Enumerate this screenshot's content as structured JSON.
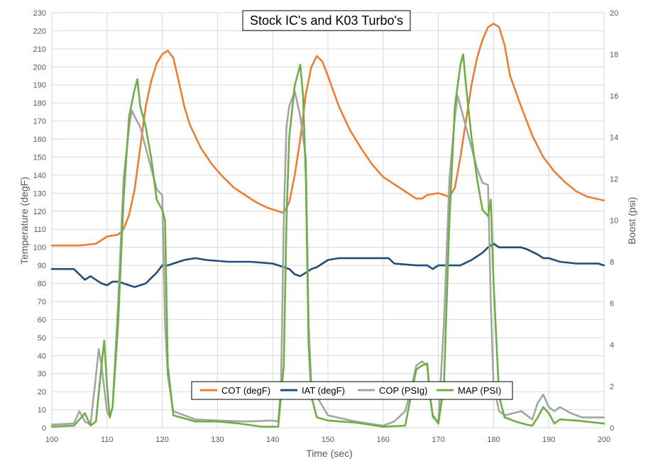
{
  "chart_data": {
    "type": "line",
    "title": "Stock IC's and K03 Turbo's",
    "xlabel": "Time (sec)",
    "ylabel_left": "Temperature (degF)",
    "ylabel_right": "Boost (psi)",
    "xlim": [
      100,
      200
    ],
    "ylim_left": [
      0,
      230
    ],
    "ylim_right": [
      0,
      20
    ],
    "x_ticks": [
      100,
      110,
      120,
      130,
      140,
      150,
      160,
      170,
      180,
      190,
      200
    ],
    "y_left_ticks": [
      0,
      10,
      20,
      30,
      40,
      50,
      60,
      70,
      80,
      90,
      100,
      110,
      120,
      130,
      140,
      150,
      160,
      170,
      180,
      190,
      200,
      210,
      220,
      230
    ],
    "y_right_ticks": [
      0,
      2,
      4,
      6,
      8,
      10,
      12,
      14,
      16,
      18,
      20
    ],
    "grid": "vertical and horizontal",
    "legend_position": "bottom-center",
    "series": [
      {
        "name": "COT (degF)",
        "axis": "left",
        "color": "#ED7D31",
        "points": [
          [
            100,
            101
          ],
          [
            105,
            101
          ],
          [
            108,
            102
          ],
          [
            110,
            106
          ],
          [
            112,
            107
          ],
          [
            113,
            110
          ],
          [
            114,
            118
          ],
          [
            115,
            132
          ],
          [
            116,
            155
          ],
          [
            117,
            178
          ],
          [
            118,
            192
          ],
          [
            119,
            202
          ],
          [
            120,
            207
          ],
          [
            121,
            209
          ],
          [
            122,
            205
          ],
          [
            123,
            192
          ],
          [
            124,
            178
          ],
          [
            125,
            168
          ],
          [
            127,
            155
          ],
          [
            129,
            146
          ],
          [
            131,
            139
          ],
          [
            133,
            133
          ],
          [
            135,
            129
          ],
          [
            137,
            125
          ],
          [
            139,
            122
          ],
          [
            141,
            120
          ],
          [
            142,
            119
          ],
          [
            143,
            125
          ],
          [
            144,
            140
          ],
          [
            145,
            160
          ],
          [
            146,
            185
          ],
          [
            147,
            200
          ],
          [
            148,
            206
          ],
          [
            149,
            203
          ],
          [
            150,
            195
          ],
          [
            152,
            178
          ],
          [
            154,
            165
          ],
          [
            156,
            155
          ],
          [
            158,
            146
          ],
          [
            160,
            139
          ],
          [
            162,
            135
          ],
          [
            164,
            131
          ],
          [
            166,
            127
          ],
          [
            167,
            127
          ],
          [
            168,
            129
          ],
          [
            170,
            130
          ],
          [
            171,
            129
          ],
          [
            172,
            128
          ],
          [
            173,
            133
          ],
          [
            174,
            150
          ],
          [
            175,
            170
          ],
          [
            176,
            190
          ],
          [
            177,
            205
          ],
          [
            178,
            215
          ],
          [
            179,
            222
          ],
          [
            180,
            224
          ],
          [
            181,
            222
          ],
          [
            182,
            212
          ],
          [
            183,
            195
          ],
          [
            185,
            178
          ],
          [
            187,
            162
          ],
          [
            189,
            150
          ],
          [
            191,
            142
          ],
          [
            193,
            136
          ],
          [
            195,
            131
          ],
          [
            197,
            128
          ],
          [
            200,
            126
          ]
        ]
      },
      {
        "name": "IAT (degF)",
        "axis": "left",
        "color": "#1F4E79",
        "points": [
          [
            100,
            88
          ],
          [
            104,
            88
          ],
          [
            105,
            85
          ],
          [
            106,
            82
          ],
          [
            107,
            84
          ],
          [
            108,
            82
          ],
          [
            109,
            80
          ],
          [
            110,
            79
          ],
          [
            111,
            81
          ],
          [
            112,
            81
          ],
          [
            113,
            80
          ],
          [
            114,
            79
          ],
          [
            115,
            78
          ],
          [
            116,
            79
          ],
          [
            117,
            80
          ],
          [
            118,
            83
          ],
          [
            119,
            86
          ],
          [
            120,
            90
          ],
          [
            121,
            90
          ],
          [
            122,
            91
          ],
          [
            124,
            93
          ],
          [
            126,
            94
          ],
          [
            128,
            93
          ],
          [
            132,
            92
          ],
          [
            136,
            92
          ],
          [
            140,
            91
          ],
          [
            142,
            89
          ],
          [
            143,
            88
          ],
          [
            144,
            85
          ],
          [
            145,
            84
          ],
          [
            146,
            86
          ],
          [
            147,
            88
          ],
          [
            148,
            89
          ],
          [
            150,
            93
          ],
          [
            152,
            94
          ],
          [
            158,
            94
          ],
          [
            161,
            94
          ],
          [
            162,
            91
          ],
          [
            166,
            90
          ],
          [
            168,
            90
          ],
          [
            169,
            88
          ],
          [
            170,
            90
          ],
          [
            172,
            90
          ],
          [
            174,
            90
          ],
          [
            176,
            93
          ],
          [
            178,
            97
          ],
          [
            179,
            100
          ],
          [
            180,
            102
          ],
          [
            181,
            100
          ],
          [
            183,
            100
          ],
          [
            185,
            100
          ],
          [
            186,
            99
          ],
          [
            188,
            96
          ],
          [
            189,
            94
          ],
          [
            190,
            94
          ],
          [
            192,
            92
          ],
          [
            195,
            91
          ],
          [
            199,
            91
          ],
          [
            200,
            90
          ]
        ]
      },
      {
        "name": "COP (PSIg)",
        "axis": "right",
        "color": "#A5A5A5",
        "points": [
          [
            100,
            0.15
          ],
          [
            104,
            0.2
          ],
          [
            105,
            0.8
          ],
          [
            106,
            0.3
          ],
          [
            107,
            0.15
          ],
          [
            108,
            2.5
          ],
          [
            108.5,
            3.8
          ],
          [
            109,
            3.0
          ],
          [
            110,
            0.8
          ],
          [
            110.5,
            0.5
          ],
          [
            111,
            1.0
          ],
          [
            112,
            6.0
          ],
          [
            113,
            12
          ],
          [
            114,
            14.5
          ],
          [
            114.5,
            15.3
          ],
          [
            115,
            15.0
          ],
          [
            116,
            14.5
          ],
          [
            117,
            13.5
          ],
          [
            118,
            12.5
          ],
          [
            119,
            11.5
          ],
          [
            120,
            11.2
          ],
          [
            120.5,
            5.0
          ],
          [
            121,
            2.5
          ],
          [
            122,
            0.8
          ],
          [
            124,
            0.6
          ],
          [
            126,
            0.4
          ],
          [
            130,
            0.35
          ],
          [
            135,
            0.3
          ],
          [
            140,
            0.35
          ],
          [
            141,
            0.3
          ],
          [
            141.5,
            2.0
          ],
          [
            142,
            10.0
          ],
          [
            142.5,
            14.5
          ],
          [
            143,
            15.5
          ],
          [
            144,
            16.2
          ],
          [
            145,
            15.0
          ],
          [
            146,
            13.0
          ],
          [
            146.5,
            5.0
          ],
          [
            147,
            2.0
          ],
          [
            148,
            1.5
          ],
          [
            150,
            0.6
          ],
          [
            155,
            0.3
          ],
          [
            160,
            0.1
          ],
          [
            162,
            0.3
          ],
          [
            164,
            0.8
          ],
          [
            165,
            1.8
          ],
          [
            166,
            3.0
          ],
          [
            167,
            3.2
          ],
          [
            168,
            3.0
          ],
          [
            168.5,
            1.5
          ],
          [
            169,
            0.5
          ],
          [
            170,
            0.3
          ],
          [
            171,
            5.0
          ],
          [
            172,
            12.0
          ],
          [
            173,
            15.0
          ],
          [
            173.5,
            16.0
          ],
          [
            174,
            15.5
          ],
          [
            175,
            14.5
          ],
          [
            176,
            13.5
          ],
          [
            177,
            12.5
          ],
          [
            178,
            11.8
          ],
          [
            179,
            11.7
          ],
          [
            179.5,
            6.0
          ],
          [
            180,
            2.0
          ],
          [
            181,
            0.8
          ],
          [
            182,
            0.6
          ],
          [
            185,
            0.8
          ],
          [
            187,
            0.4
          ],
          [
            188,
            1.2
          ],
          [
            189,
            1.6
          ],
          [
            190,
            1.0
          ],
          [
            191,
            0.8
          ],
          [
            192,
            1.0
          ],
          [
            194,
            0.7
          ],
          [
            196,
            0.5
          ],
          [
            200,
            0.5
          ]
        ]
      },
      {
        "name": "MAP (PSI)",
        "axis": "right",
        "color": "#70AD47",
        "points": [
          [
            100,
            0.05
          ],
          [
            104,
            0.1
          ],
          [
            106,
            0.7
          ],
          [
            107,
            0.1
          ],
          [
            108,
            0.3
          ],
          [
            109,
            3.0
          ],
          [
            109.5,
            4.2
          ],
          [
            110,
            2.0
          ],
          [
            110.5,
            0.5
          ],
          [
            111,
            1.0
          ],
          [
            112,
            5.0
          ],
          [
            113,
            11.0
          ],
          [
            114,
            15.0
          ],
          [
            115,
            16.3
          ],
          [
            115.5,
            16.8
          ],
          [
            116,
            15.5
          ],
          [
            117,
            14.5
          ],
          [
            118,
            13.0
          ],
          [
            119,
            11.0
          ],
          [
            120,
            10.5
          ],
          [
            120.5,
            10.0
          ],
          [
            121,
            3.0
          ],
          [
            122,
            0.6
          ],
          [
            124,
            0.45
          ],
          [
            126,
            0.3
          ],
          [
            130,
            0.3
          ],
          [
            134,
            0.2
          ],
          [
            138,
            0.05
          ],
          [
            140,
            0.05
          ],
          [
            141,
            0.05
          ],
          [
            142,
            3.0
          ],
          [
            142.5,
            10.0
          ],
          [
            143,
            14.0
          ],
          [
            144,
            16.5
          ],
          [
            145,
            17.5
          ],
          [
            145.5,
            16.0
          ],
          [
            146,
            12.0
          ],
          [
            146.5,
            4.0
          ],
          [
            147,
            1.5
          ],
          [
            148,
            0.5
          ],
          [
            150,
            0.35
          ],
          [
            155,
            0.25
          ],
          [
            160,
            0.05
          ],
          [
            164,
            0.1
          ],
          [
            165,
            1.5
          ],
          [
            166,
            2.8
          ],
          [
            167,
            3.0
          ],
          [
            168,
            3.1
          ],
          [
            168.5,
            1.5
          ],
          [
            169,
            0.6
          ],
          [
            170,
            0.2
          ],
          [
            171,
            2.0
          ],
          [
            172,
            10.0
          ],
          [
            173,
            15.5
          ],
          [
            174,
            17.5
          ],
          [
            174.5,
            18.0
          ],
          [
            175,
            16.5
          ],
          [
            176,
            14.0
          ],
          [
            177,
            12.0
          ],
          [
            178,
            10.5
          ],
          [
            179,
            10.2
          ],
          [
            179.5,
            11.0
          ],
          [
            180,
            7.0
          ],
          [
            181,
            1.5
          ],
          [
            182,
            0.5
          ],
          [
            184,
            0.3
          ],
          [
            186,
            0.15
          ],
          [
            187,
            0.1
          ],
          [
            188,
            0.5
          ],
          [
            189,
            1.0
          ],
          [
            190,
            0.7
          ],
          [
            191,
            0.2
          ],
          [
            192,
            0.4
          ],
          [
            195,
            0.35
          ],
          [
            200,
            0.2
          ]
        ]
      }
    ]
  }
}
